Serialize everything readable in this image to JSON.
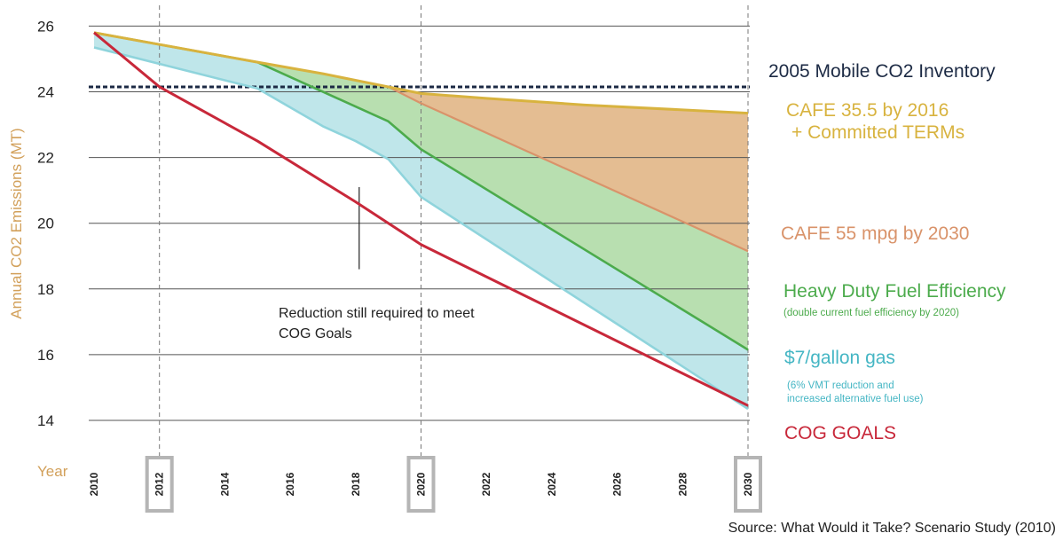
{
  "colors": {
    "committed": "#d8b33f",
    "committed_fill": "#e4bd92",
    "cafe55": "#d9936a",
    "heavy": "#4cab4c",
    "heavy_fill": "#b8dfb0",
    "gas": "#8fd4dc",
    "gas_fill": "#bfe6ea",
    "cog": "#c8283a",
    "inventory": "#1c2a44",
    "axis_label": "#d2a05a",
    "gas_label": "#45b6c4"
  },
  "chart_data": {
    "type": "area",
    "ylabel": "Annual CO2 Emissions (MT)",
    "xlabel": "Year",
    "ylim": [
      13,
      26.3
    ],
    "xlim": [
      2010,
      2030
    ],
    "yticks": [
      14,
      16,
      18,
      20,
      22,
      24,
      26
    ],
    "xticks": [
      "2010",
      "2012",
      "2014",
      "2016",
      "2018",
      "2020",
      "2022",
      "2024",
      "2026",
      "2028",
      "2030"
    ],
    "highlighted_years": [
      2012,
      2020,
      2030
    ],
    "reference_line": {
      "label": "2005 Mobile CO2 Inventory",
      "value": 24.15
    },
    "series": [
      {
        "key": "committed",
        "name": "CAFE 35.5 by 2016",
        "name2": "+ Committed TERMs",
        "x": [
          2010,
          2015,
          2017,
          2019,
          2020,
          2022,
          2025,
          2030
        ],
        "y": [
          25.8,
          24.9,
          24.55,
          24.15,
          23.95,
          23.8,
          23.6,
          23.35
        ]
      },
      {
        "key": "cafe55",
        "name": "CAFE 55 mpg by 2030",
        "x": [
          2010,
          2015,
          2017,
          2019,
          2020,
          2030
        ],
        "y": [
          25.8,
          24.9,
          24.55,
          24.15,
          23.65,
          19.15
        ]
      },
      {
        "key": "heavy",
        "name": "Heavy Duty Fuel Efficiency",
        "note": "(double current fuel efficiency by 2020)",
        "x": [
          2010,
          2015,
          2019,
          2020,
          2030
        ],
        "y": [
          25.8,
          24.9,
          23.1,
          22.25,
          16.15
        ]
      },
      {
        "key": "gas",
        "name": "$7/gallon gas",
        "note": "(6% VMT reduction and",
        "note2": "increased alternative fuel use)",
        "x": [
          2010,
          2012,
          2015,
          2017,
          2018,
          2019,
          2020,
          2030
        ],
        "y": [
          25.35,
          24.85,
          24.1,
          22.95,
          22.5,
          21.95,
          20.8,
          14.35
        ]
      },
      {
        "key": "cog",
        "name": "COG GOALS",
        "x": [
          2010,
          2012,
          2015,
          2018,
          2020,
          2030
        ],
        "y": [
          25.8,
          24.15,
          22.5,
          20.65,
          19.35,
          14.45
        ]
      }
    ],
    "annotation": {
      "line1": "Reduction still required to meet",
      "line2": "COG Goals",
      "pointer": [
        2018,
        21.1,
        18.6
      ]
    },
    "source": "Source: What Would it Take? Scenario Study (2010)"
  }
}
